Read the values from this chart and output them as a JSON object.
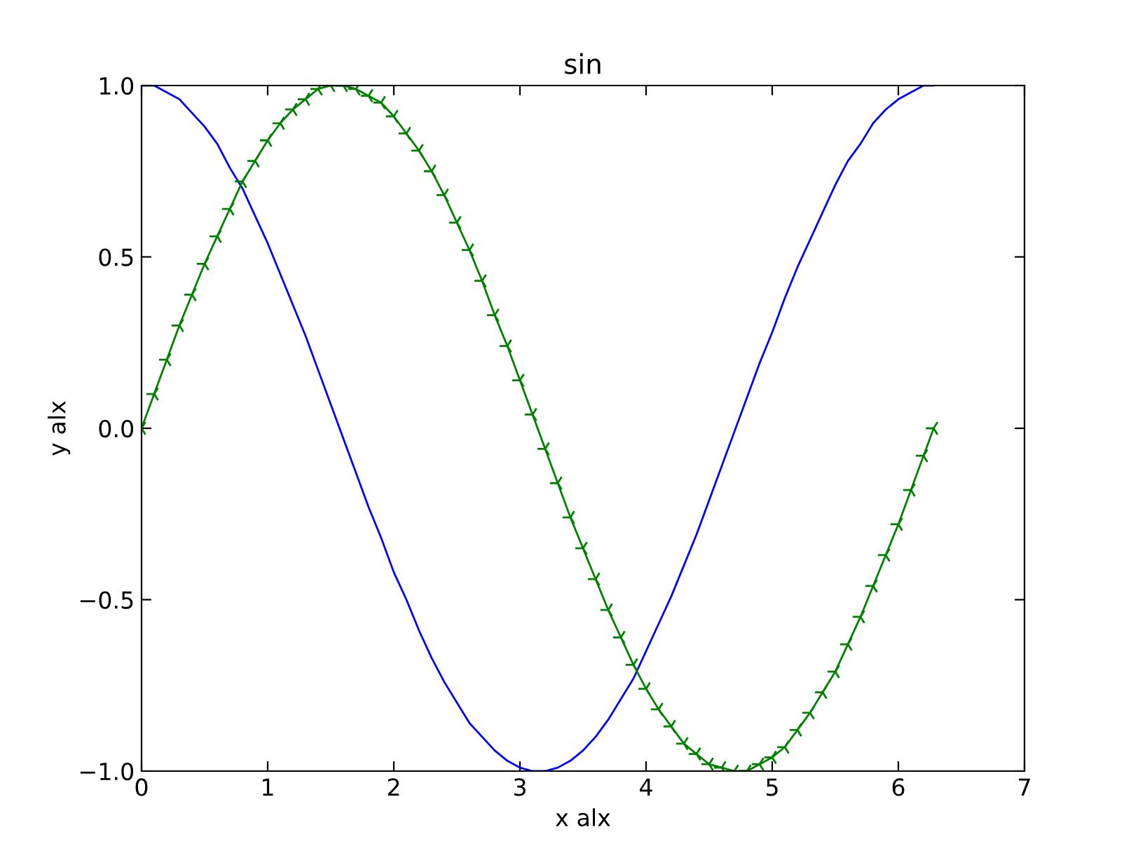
{
  "chart_data": {
    "type": "line",
    "title": "sin",
    "xlabel": "x alx",
    "ylabel": "y alx",
    "x": [
      0,
      0.1,
      0.2,
      0.3,
      0.4,
      0.5,
      0.6,
      0.7,
      0.8,
      0.9,
      1.0,
      1.1,
      1.2,
      1.3,
      1.4,
      1.5,
      1.6,
      1.7,
      1.8,
      1.9,
      2.0,
      2.1,
      2.2,
      2.3,
      2.4,
      2.5,
      2.6,
      2.7,
      2.8,
      2.9,
      3.0,
      3.1,
      3.2,
      3.3,
      3.4,
      3.5,
      3.6,
      3.7,
      3.8,
      3.9,
      4.0,
      4.1,
      4.2,
      4.3,
      4.4,
      4.5,
      4.6,
      4.7,
      4.8,
      4.9,
      5.0,
      5.1,
      5.2,
      5.3,
      5.4,
      5.5,
      5.6,
      5.7,
      5.8,
      5.9,
      6.0,
      6.1,
      6.2,
      6.28
    ],
    "series": [
      {
        "color": "#0000ff",
        "marker": "none",
        "values": [
          1,
          1.0,
          0.98,
          0.96,
          0.92,
          0.88,
          0.83,
          0.76,
          0.7,
          0.62,
          0.54,
          0.45,
          0.36,
          0.27,
          0.17,
          0.07,
          -0.03,
          -0.13,
          -0.23,
          -0.32,
          -0.42,
          -0.5,
          -0.59,
          -0.67,
          -0.74,
          -0.8,
          -0.86,
          -0.9,
          -0.94,
          -0.97,
          -0.99,
          -1.0,
          -1.0,
          -0.99,
          -0.97,
          -0.94,
          -0.9,
          -0.85,
          -0.79,
          -0.73,
          -0.65,
          -0.57,
          -0.49,
          -0.4,
          -0.31,
          -0.21,
          -0.11,
          -0.01,
          0.09,
          0.19,
          0.28,
          0.38,
          0.47,
          0.55,
          0.63,
          0.71,
          0.78,
          0.83,
          0.89,
          0.93,
          0.96,
          0.98,
          1.0,
          1
        ]
      },
      {
        "color": "#008000",
        "marker": "cross",
        "values": [
          0,
          0.1,
          0.2,
          0.3,
          0.39,
          0.48,
          0.56,
          0.64,
          0.72,
          0.78,
          0.84,
          0.89,
          0.93,
          0.96,
          0.99,
          1.0,
          1.0,
          0.99,
          0.97,
          0.95,
          0.91,
          0.86,
          0.81,
          0.75,
          0.68,
          0.6,
          0.52,
          0.43,
          0.33,
          0.24,
          0.14,
          0.04,
          -0.06,
          -0.16,
          -0.26,
          -0.35,
          -0.44,
          -0.53,
          -0.61,
          -0.69,
          -0.76,
          -0.82,
          -0.87,
          -0.92,
          -0.95,
          -0.98,
          -0.99,
          -1.0,
          -1.0,
          -0.98,
          -0.96,
          -0.93,
          -0.88,
          -0.83,
          -0.77,
          -0.71,
          -0.63,
          -0.55,
          -0.46,
          -0.37,
          -0.28,
          -0.18,
          -0.08,
          0
        ]
      }
    ],
    "xlim": [
      0,
      7
    ],
    "xticks": [
      0,
      1,
      2,
      3,
      4,
      5,
      6,
      7
    ],
    "ylim": [
      -1.0,
      1.0
    ],
    "yticks": [
      {
        "value": -1.0,
        "label": "−1.0"
      },
      {
        "value": -0.5,
        "label": "−0.5"
      },
      {
        "value": 0.0,
        "label": "0.0"
      },
      0.5,
      {
        "value": 1.0,
        "label": "1.0"
      }
    ],
    "grid": false,
    "line_style": "solid"
  }
}
